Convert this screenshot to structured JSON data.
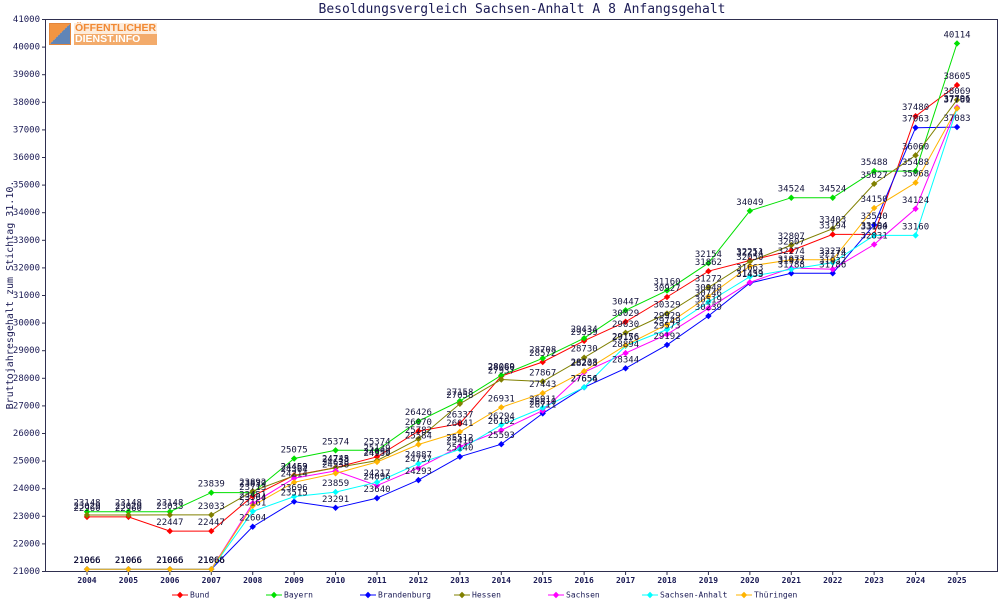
{
  "logo": {
    "line1": "ÖFFENTLICHER",
    "line2": "DIENST.INFO"
  },
  "chart_data": {
    "type": "line",
    "title": "Besoldungsvergleich Sachsen-Anhalt A 8 Anfangsgehalt",
    "ylabel": "Bruttojahresgehalt zum Stichtag 31.10.",
    "x": [
      2004,
      2005,
      2006,
      2007,
      2008,
      2009,
      2010,
      2011,
      2012,
      2013,
      2014,
      2015,
      2016,
      2017,
      2018,
      2019,
      2020,
      2021,
      2022,
      2023,
      2024,
      2025
    ],
    "ylim": [
      21000,
      41000
    ],
    "y_ticks": [
      21000,
      22000,
      23000,
      24000,
      25000,
      26000,
      27000,
      28000,
      29000,
      30000,
      31000,
      32000,
      33000,
      34000,
      35000,
      36000,
      37000,
      38000,
      39000,
      40000,
      41000
    ],
    "grid": false,
    "legend_position": "bottom",
    "data_labels": true,
    "series": [
      {
        "name": "Bund",
        "color": "#ff0000",
        "values": [
          22960,
          22960,
          22447,
          22447,
          23713,
          24469,
          24745,
          25139,
          26070,
          26337,
          28060,
          28572,
          29339,
          30029,
          30927,
          31862,
          32251,
          32607,
          33194,
          33194,
          37480,
          38605
        ]
      },
      {
        "name": "Bayern",
        "color": "#00e000",
        "values": [
          23148,
          23148,
          23148,
          23839,
          23839,
          25075,
          25374,
          25374,
          26426,
          27158,
          28089,
          28708,
          29434,
          30447,
          31160,
          32154,
          34049,
          34524,
          34524,
          35488,
          35488,
          40114
        ]
      },
      {
        "name": "Brandenburg",
        "color": "#0000ff",
        "values": [
          21066,
          21066,
          21066,
          21066,
          22604,
          23515,
          23291,
          23640,
          24293,
          25140,
          25593,
          26711,
          27654,
          28344,
          29192,
          30239,
          31433,
          31788,
          31786,
          33540,
          37063,
          37083
        ]
      },
      {
        "name": "Hessen",
        "color": "#808000",
        "values": [
          23029,
          23029,
          23033,
          23033,
          23892,
          24453,
          24738,
          24999,
          25782,
          27058,
          27937,
          27867,
          28730,
          29630,
          30329,
          31272,
          32214,
          32807,
          33403,
          35027,
          36060,
          38069
        ]
      },
      {
        "name": "Sachsen",
        "color": "#ff00ff",
        "values": [
          21066,
          21066,
          21066,
          21066,
          23451,
          24364,
          24628,
          24096,
          24737,
          25512,
          26102,
          26810,
          28203,
          28894,
          29573,
          30519,
          31459,
          31977,
          31932,
          32831,
          34124,
          37796
        ]
      },
      {
        "name": "Sachsen-Anhalt",
        "color": "#00ffff",
        "values": [
          21066,
          21066,
          21066,
          21066,
          23161,
          23696,
          23859,
          24217,
          24887,
          25410,
          26294,
          26911,
          27656,
          29156,
          29749,
          30746,
          31663,
          31932,
          32174,
          33160,
          33160,
          37761
        ]
      },
      {
        "name": "Thüringen",
        "color": "#ffb400",
        "values": [
          21066,
          21066,
          21066,
          21066,
          23364,
          24214,
          24538,
          24950,
          25584,
          26041,
          26931,
          27443,
          28238,
          29176,
          29929,
          30948,
          32050,
          32274,
          32274,
          34150,
          35068,
          37761
        ]
      }
    ]
  }
}
